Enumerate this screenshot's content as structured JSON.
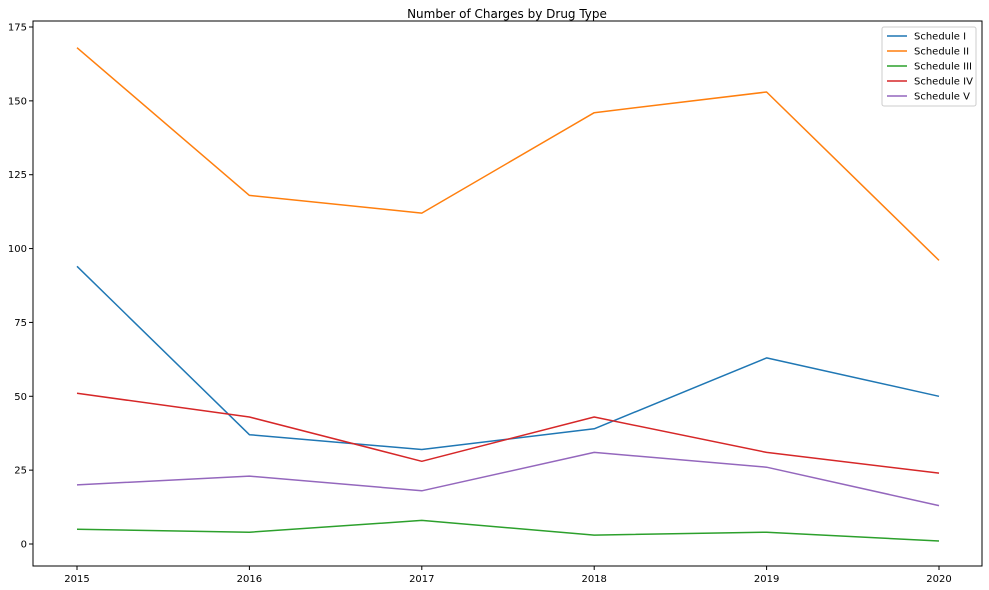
{
  "chart_data": {
    "type": "line",
    "title": "Number of Charges by Drug Type",
    "xlabel": "",
    "ylabel": "",
    "x": [
      "2015",
      "2016",
      "2017",
      "2018",
      "2019",
      "2020"
    ],
    "x_ticks": [
      "2015",
      "2016",
      "2017",
      "2018",
      "2019",
      "2020"
    ],
    "y_ticks": [
      "0",
      "25",
      "50",
      "75",
      "100",
      "125",
      "150",
      "175"
    ],
    "ylim": [
      -7.5,
      177
    ],
    "grid": false,
    "legend_position": "top-right",
    "series": [
      {
        "name": "Schedule I",
        "color": "#1f77b4",
        "values": [
          94,
          37,
          32,
          39,
          63,
          50
        ]
      },
      {
        "name": "Schedule II",
        "color": "#ff7f0e",
        "values": [
          168,
          118,
          112,
          146,
          153,
          96
        ]
      },
      {
        "name": "Schedule III",
        "color": "#2ca02c",
        "values": [
          5,
          4,
          8,
          3,
          4,
          1
        ]
      },
      {
        "name": "Schedule IV",
        "color": "#d62728",
        "values": [
          51,
          43,
          28,
          43,
          31,
          24
        ]
      },
      {
        "name": "Schedule V",
        "color": "#9467bd",
        "values": [
          20,
          23,
          18,
          31,
          26,
          13
        ]
      }
    ]
  }
}
